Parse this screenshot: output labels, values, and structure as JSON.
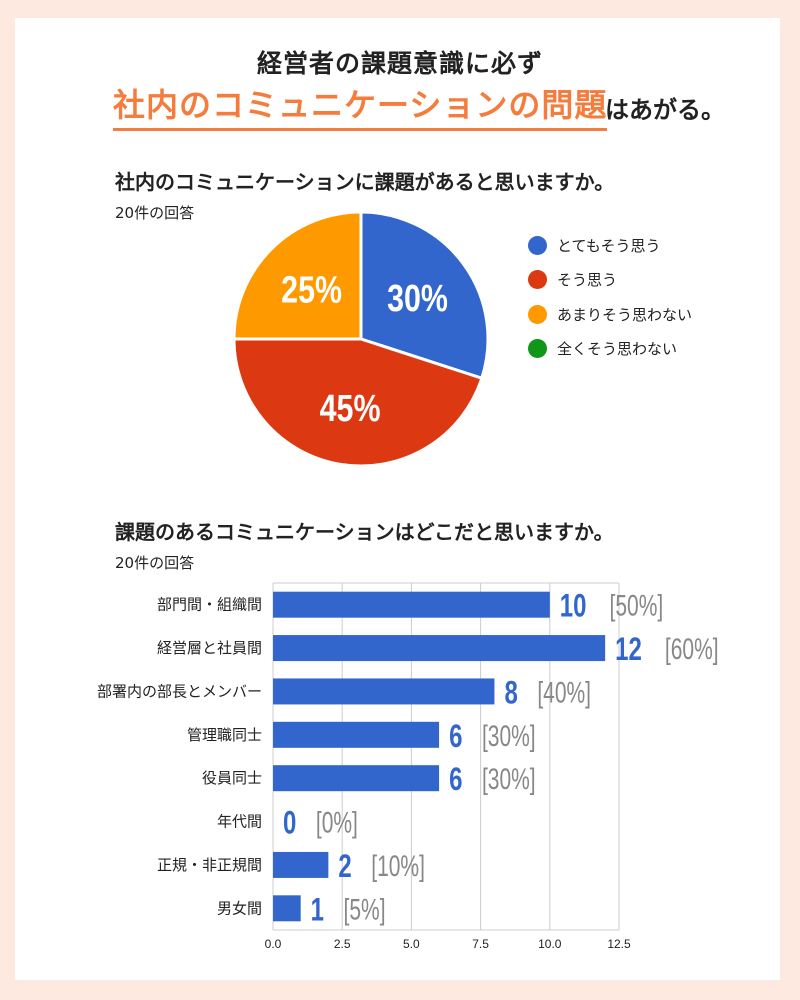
{
  "headline": {
    "line1": "経営者の課題意識に必ず",
    "highlight": "社内のコミュニケーションの問題",
    "suffix": "はあがる。"
  },
  "colors": {
    "accent": "#f47c3c",
    "blue": "#3366cc",
    "red": "#dc3912",
    "orange": "#ff9900",
    "green": "#109618",
    "gray_label": "#888888",
    "background": "#fde9df"
  },
  "chart_data": [
    {
      "type": "pie",
      "title": "社内のコミュニケーションに課題があると思いますか。",
      "subtitle": "20件の回答",
      "legend_placement": "right",
      "slices": [
        {
          "name": "とてもそう思う",
          "value": 30,
          "label": "30%",
          "color": "#3366cc"
        },
        {
          "name": "そう思う",
          "value": 45,
          "label": "45%",
          "color": "#dc3912"
        },
        {
          "name": "あまりそう思わない",
          "value": 25,
          "label": "25%",
          "color": "#ff9900"
        },
        {
          "name": "全くそう思わない",
          "value": 0,
          "label": "",
          "color": "#109618"
        }
      ]
    },
    {
      "type": "bar",
      "orientation": "horizontal",
      "title": "課題のあるコミュニケーションはどこだと思いますか。",
      "subtitle": "20件の回答",
      "categories": [
        "部門間・組織間",
        "経営層と社員間",
        "部署内の部長とメンバー",
        "管理職同士",
        "役員同士",
        "年代間",
        "正規・非正規間",
        "男女間"
      ],
      "values": [
        10,
        12,
        8,
        6,
        6,
        0,
        2,
        1
      ],
      "percent_labels": [
        "[50%]",
        "[60%]",
        "[40%]",
        "[30%]",
        "[30%]",
        "[0%]",
        "[10%]",
        "[5%]"
      ],
      "xlim": [
        0,
        12.5
      ],
      "xticks": [
        "0.0",
        "2.5",
        "5.0",
        "7.5",
        "10.0",
        "12.5"
      ],
      "grid": true,
      "color": "#3366cc"
    }
  ]
}
